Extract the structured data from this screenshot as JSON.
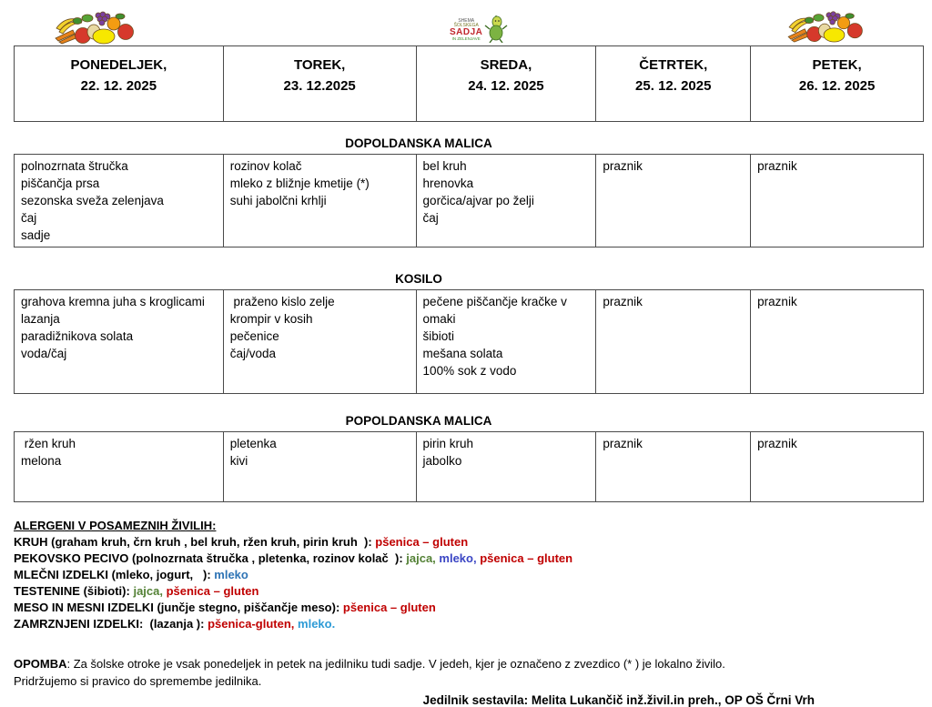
{
  "header": {
    "days": [
      {
        "name": "PONEDELJEK,",
        "date": "22. 12. 2025"
      },
      {
        "name": "TOREK,",
        "date": "23. 12.2025"
      },
      {
        "name": "SREDA,",
        "date": "24. 12. 2025"
      },
      {
        "name": "ČETRTEK,",
        "date": "25. 12. 2025"
      },
      {
        "name": "PETEK,",
        "date": "26. 12. 2025"
      }
    ],
    "logo": {
      "line1": "SHEMA",
      "line2": "ŠOLSKEGA",
      "line3": "SADJA",
      "line4": "IN ZELENJAVE"
    }
  },
  "sections": [
    {
      "title": "DOPOLDANSKA MALICA",
      "cells": [
        "polnozrnata štručka\npiščančja prsa\nsezonska sveža zelenjava\nčaj\nsadje",
        "rozinov kolač\nmleko z bližnje kmetije (*)\nsuhi jabolčni krhlji",
        "bel kruh\nhrenovka\ngorčica/ajvar po želji\nčaj",
        "praznik",
        "praznik"
      ]
    },
    {
      "title": "KOSILO",
      "cells": [
        "grahova kremna juha s kroglicami\nlazanja\nparadižnikova solata\nvoda/čaj",
        " praženo kislo zelje\nkrompir v kosih\npečenice\nčaj/voda",
        "pečene piščančje kračke v\nomaki\nšibioti\nmešana solata\n100% sok z vodo",
        "praznik",
        "praznik"
      ]
    },
    {
      "title": "POPOLDANSKA MALICA",
      "cells": [
        " ržen kruh\nmelona",
        "pletenka\nkivi",
        "pirin kruh\njabolko",
        "praznik",
        "praznik"
      ]
    }
  ],
  "allergens": {
    "heading": "ALERGENI V POSAMEZNIH ŽIVILIH:",
    "colors": {
      "red": "#c00000",
      "green": "#538135",
      "blue": "#2e74b5",
      "blue_violet": "#3a45c4",
      "light_blue": "#2e9bd6"
    },
    "lines": [
      [
        {
          "t": "KRUH (graham kruh, črn kruh , bel kruh, ržen kruh, pirin kruh  ): ",
          "c": "#000000"
        },
        {
          "t": "pšenica – gluten",
          "c": "#c00000"
        }
      ],
      [
        {
          "t": "PEKOVSKO PECIVO (polnozrnata štručka , pletenka, rozinov kolač  ): ",
          "c": "#000000"
        },
        {
          "t": "jajca, ",
          "c": "#538135"
        },
        {
          "t": "mleko, ",
          "c": "#3a45c4"
        },
        {
          "t": "pšenica – gluten",
          "c": "#c00000"
        }
      ],
      [
        {
          "t": "MLEČNI IZDELKI (mleko, jogurt,   ): ",
          "c": "#000000"
        },
        {
          "t": "mleko",
          "c": "#2e74b5"
        }
      ],
      [
        {
          "t": "TESTENINE (šibioti): ",
          "c": "#000000"
        },
        {
          "t": "jajca, ",
          "c": "#538135"
        },
        {
          "t": "pšenica – gluten",
          "c": "#c00000"
        }
      ],
      [
        {
          "t": "MESO IN MESNI IZDELKI (junčje stegno, piščančje meso): ",
          "c": "#000000"
        },
        {
          "t": "pšenica – gluten",
          "c": "#c00000"
        }
      ],
      [
        {
          "t": "ZAMRZNJENI IZDELKI:  (lazanja ): ",
          "c": "#000000"
        },
        {
          "t": "pšenica-gluten, ",
          "c": "#c00000"
        },
        {
          "t": "mleko.",
          "c": "#2e9bd6"
        }
      ]
    ]
  },
  "footer": {
    "opomba_label": "OPOMBA",
    "opomba_text": ":  Za šolske otroke je vsak ponedeljek in petek na jedilniku tudi sadje.  V jedeh, kjer je označeno z zvezdico (* ) je lokalno živilo.",
    "opomba_line2": "Pridržujemo si pravico do spremembe jedilnika.",
    "signature": "Jedilnik sestavila: Melita Lukančič inž.živil.in preh., OP OŠ Črni Vrh"
  }
}
